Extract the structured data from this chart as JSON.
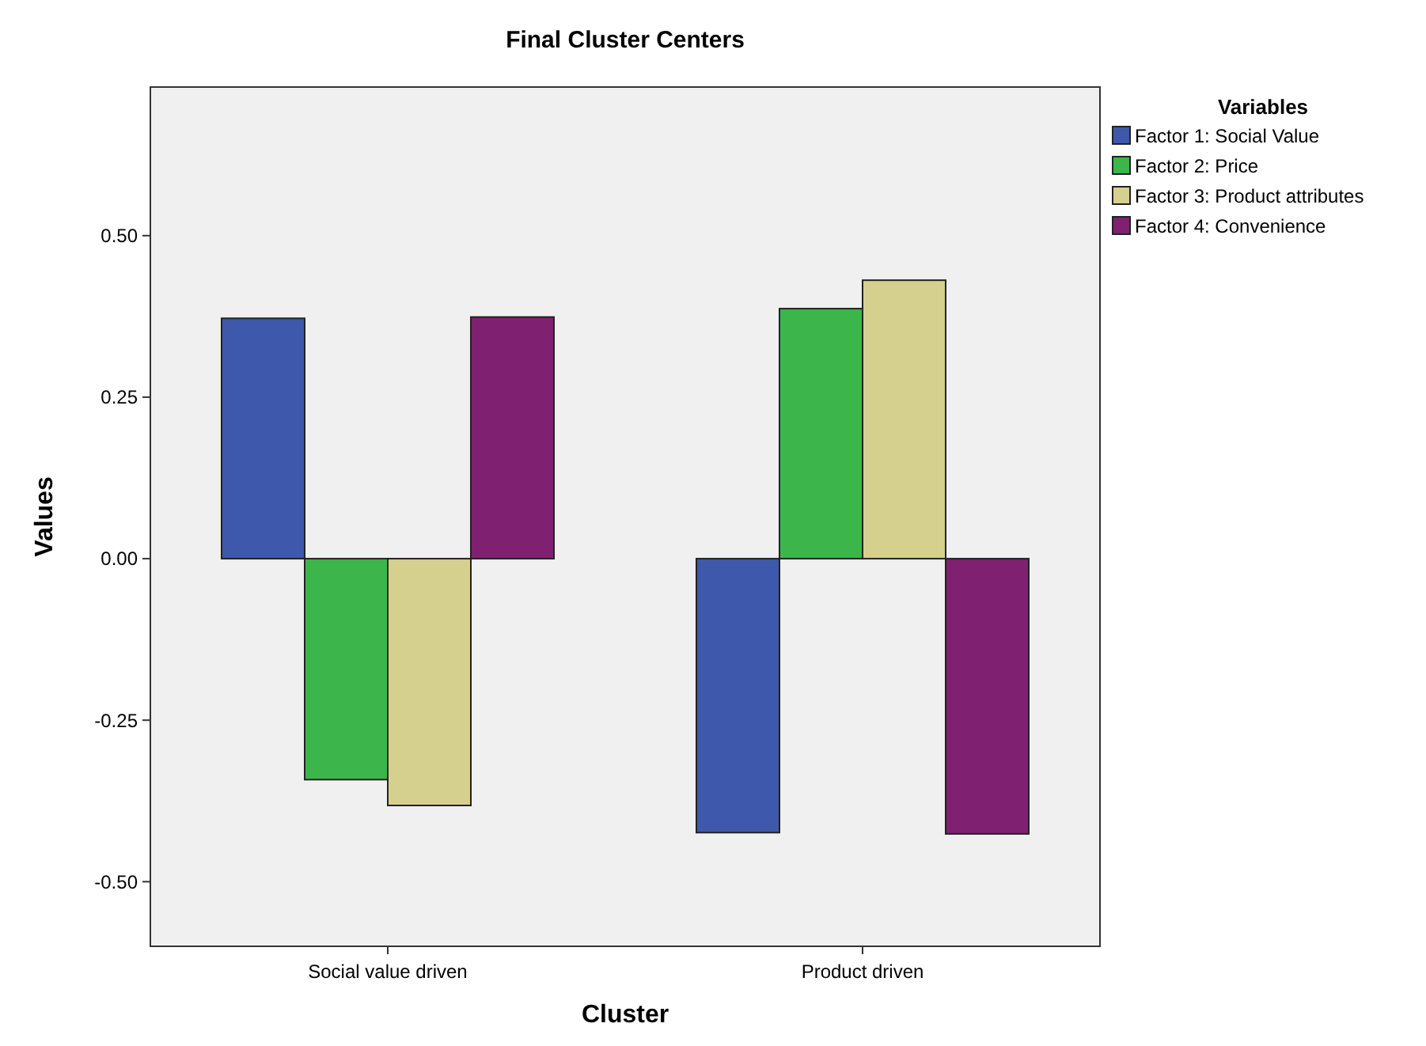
{
  "chart_data": {
    "type": "bar",
    "title": "Final Cluster Centers",
    "xlabel": "Cluster",
    "ylabel": "Values",
    "legend_title": "Variables",
    "legend": "top right",
    "categories": [
      "Social value driven",
      "Product driven"
    ],
    "series": [
      {
        "name": "Factor 1: Social Value",
        "color": "#3e58ac",
        "values": [
          0.372,
          -0.424
        ]
      },
      {
        "name": "Factor 2: Price",
        "color": "#3cb64a",
        "values": [
          -0.342,
          0.387
        ]
      },
      {
        "name": "Factor 3: Product attributes",
        "color": "#d6d08f",
        "values": [
          -0.382,
          0.431
        ]
      },
      {
        "name": "Factor 4: Convenience",
        "color": "#7f2170",
        "values": [
          0.374,
          -0.426
        ]
      }
    ],
    "ylim": [
      -0.6,
      0.73
    ],
    "yticks": [
      {
        "value": -0.5,
        "label": "-0.50"
      },
      {
        "value": -0.25,
        "label": "-0.25"
      },
      {
        "value": 0,
        "label": "0.00"
      },
      {
        "value": 0.25,
        "label": "0.25"
      },
      {
        "value": 0.5,
        "label": "0.50"
      }
    ],
    "grid": false
  }
}
